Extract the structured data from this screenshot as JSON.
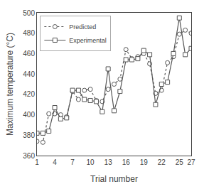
{
  "chart_data": {
    "type": "line",
    "xlabel": "Trial number",
    "ylabel": "Maximum temperature (°C)",
    "x": [
      1,
      2,
      3,
      4,
      5,
      6,
      7,
      8,
      9,
      10,
      11,
      12,
      13,
      14,
      15,
      16,
      17,
      18,
      19,
      20,
      21,
      22,
      23,
      24,
      25,
      26,
      27
    ],
    "series": [
      {
        "name": "Predicted",
        "color": "#555555",
        "marker": "circle",
        "line_style": "dotted",
        "values": [
          374,
          373,
          401,
          401,
          400,
          398,
          423,
          415,
          424,
          425,
          414,
          413,
          425,
          430,
          435,
          464,
          455,
          457,
          460,
          450,
          421,
          424,
          451,
          457,
          479,
          483,
          480
        ]
      },
      {
        "name": "Experimental",
        "color": "#555555",
        "marker": "square",
        "line_style": "solid",
        "values": [
          382,
          382,
          384,
          407,
          396,
          397,
          424,
          424,
          415,
          414,
          413,
          403,
          445,
          404,
          423,
          454,
          454,
          455,
          463,
          459,
          410,
          430,
          432,
          460,
          495,
          459,
          465
        ]
      }
    ],
    "xlim": [
      1,
      27
    ],
    "ylim": [
      360,
      500
    ],
    "xticks": [
      1,
      4,
      7,
      10,
      13,
      16,
      19,
      22,
      25,
      27
    ],
    "yticks": [
      360,
      380,
      400,
      420,
      440,
      460,
      480,
      500
    ],
    "grid": false,
    "legend": "upper left"
  }
}
